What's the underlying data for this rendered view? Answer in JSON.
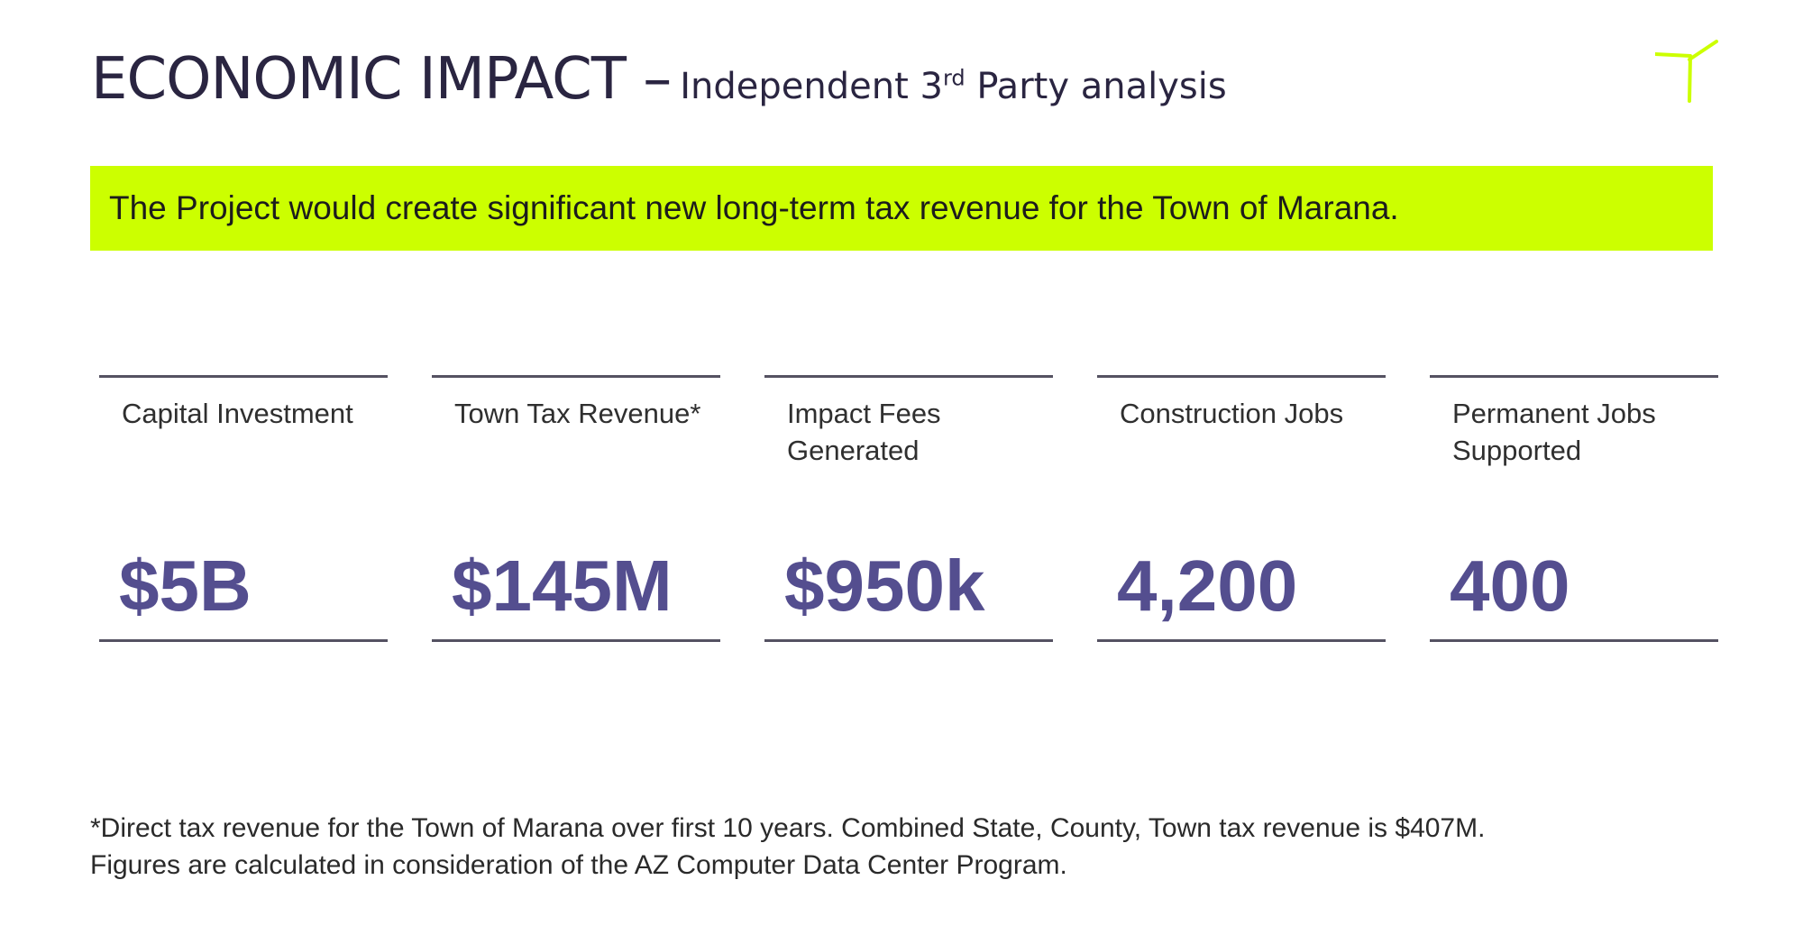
{
  "header": {
    "title_main": "ECONOMIC IMPACT –",
    "title_sub_prefix": "Independent 3",
    "title_sub_sup": "rd",
    "title_sub_suffix": " Party analysis",
    "logo_icon": "y-mark-icon",
    "logo_color": "#ccff00"
  },
  "banner": {
    "text": "The Project would create significant new long-term tax revenue for the Town of Marana.",
    "color": "#ccff00"
  },
  "stats": [
    {
      "label": "Capital Investment",
      "value": "$5B"
    },
    {
      "label": "Town Tax Revenue*",
      "value": "$145M"
    },
    {
      "label": "Impact Fees Generated",
      "value": "$950k"
    },
    {
      "label": "Construction Jobs",
      "value": "4,200"
    },
    {
      "label": "Permanent Jobs Supported",
      "value": "400"
    }
  ],
  "stat_value_color": "#544e8f",
  "footnote": {
    "line1": "*Direct tax revenue for the Town of Marana over first 10 years. Combined State, County, Town tax revenue is $407M.",
    "line2": "Figures are calculated in consideration of the AZ Computer Data Center Program."
  }
}
